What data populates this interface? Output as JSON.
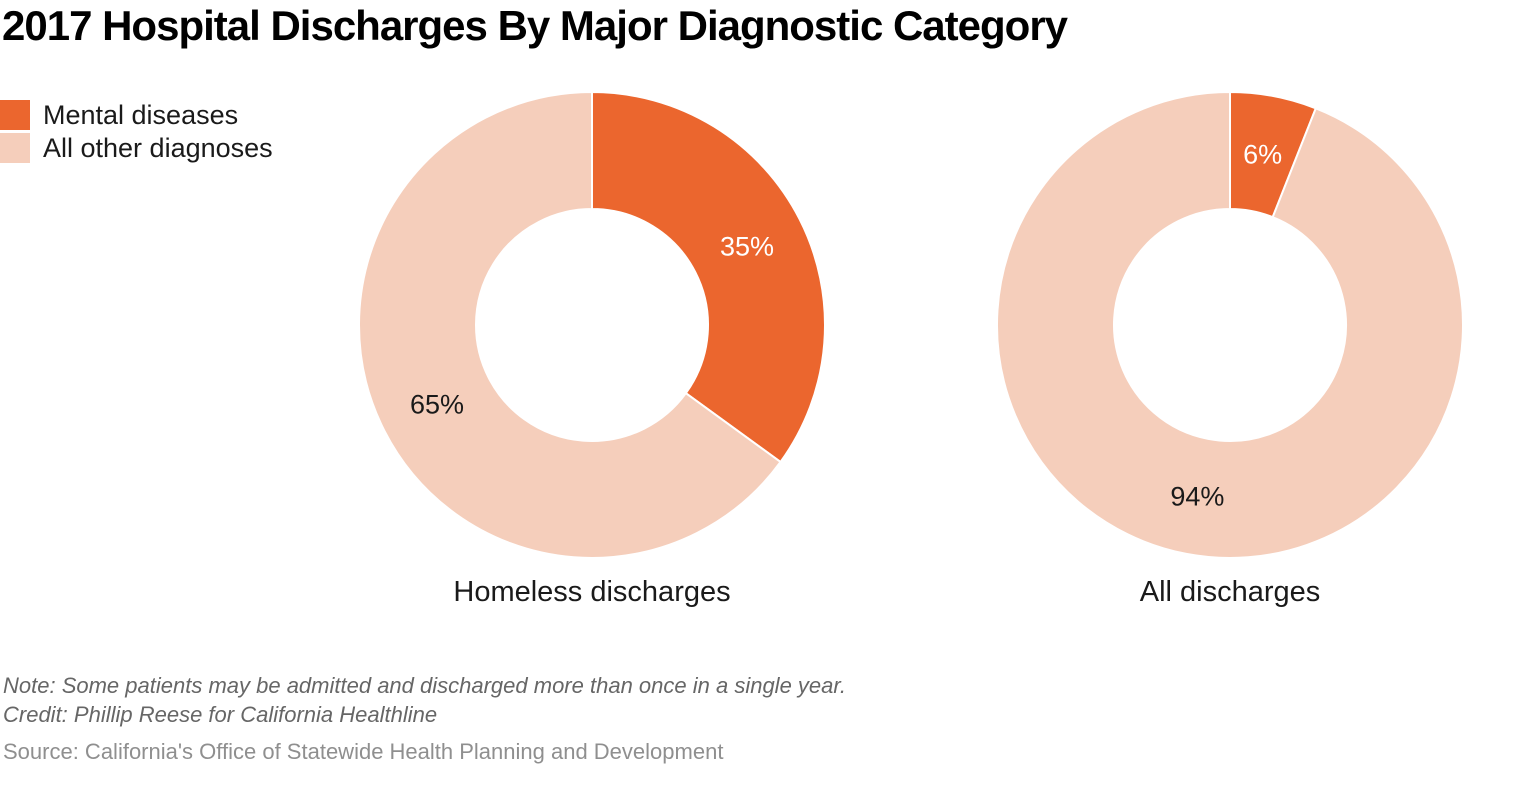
{
  "header": {
    "title": "2017 Hospital Discharges By Major Diagnostic Category"
  },
  "legend": {
    "items": [
      {
        "label": "Mental diseases",
        "color": "#EB662E"
      },
      {
        "label": "All other diagnoses",
        "color": "#F5CEBB"
      }
    ]
  },
  "chart_data": {
    "type": "pie",
    "variant": "donut",
    "title": "2017 Hospital Discharges By Major Diagnostic Category",
    "legend_position": "top-left",
    "categories": [
      "Mental diseases",
      "All other diagnoses"
    ],
    "colors": [
      "#EB662E",
      "#F5CEBB"
    ],
    "slice_label_colors": [
      "#ffffff",
      "#1a1a1a"
    ],
    "charts": [
      {
        "name": "Homeless discharges",
        "values": [
          35,
          65
        ],
        "value_labels": [
          "35%",
          "65%"
        ]
      },
      {
        "name": "All discharges",
        "values": [
          6,
          94
        ],
        "value_labels": [
          "6%",
          "94%"
        ]
      }
    ],
    "layout": {
      "centers": [
        [
          592,
          325
        ],
        [
          1230,
          325
        ]
      ],
      "outer_radius": 233,
      "inner_radius": 116,
      "label_radius": 174,
      "start_angle_deg": 0,
      "direction": "clockwise",
      "slice_stroke": "#ffffff",
      "slice_stroke_width": 2,
      "label_font_size": 27
    }
  },
  "footer": {
    "note": "Note: Some patients may be admitted and discharged more than once in a single year.",
    "credit": "Credit: Phillip Reese for California Healthline",
    "source": "Source: California's Office of Statewide Health Planning and Development"
  }
}
